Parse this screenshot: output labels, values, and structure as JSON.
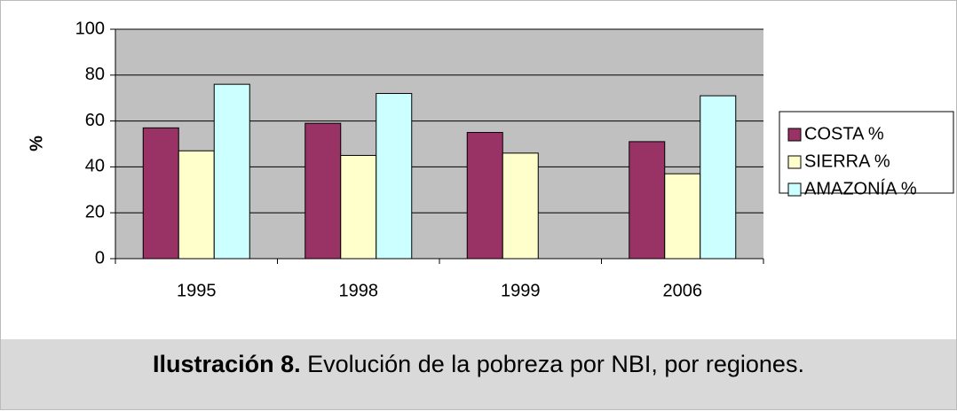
{
  "chart_data": {
    "type": "bar",
    "y_label": "%",
    "categories": [
      "1995",
      "1998",
      "1999",
      "2006"
    ],
    "series": [
      {
        "name": "COSTA %",
        "color": "#993366",
        "values": [
          57,
          59,
          55,
          51
        ]
      },
      {
        "name": "SIERRA %",
        "color": "#ffffcc",
        "values": [
          47,
          45,
          46,
          37
        ]
      },
      {
        "name": "AMAZONÍA %",
        "color": "#ccffff",
        "values": [
          76,
          72,
          null,
          71
        ]
      }
    ],
    "ylim": [
      0,
      100
    ],
    "yticks": [
      0,
      20,
      40,
      60,
      80,
      100
    ],
    "grid": true,
    "legend": "right"
  },
  "caption": {
    "label": "Ilustración 8.",
    "text": "Evolución de la pobreza por NBI, por regiones."
  }
}
